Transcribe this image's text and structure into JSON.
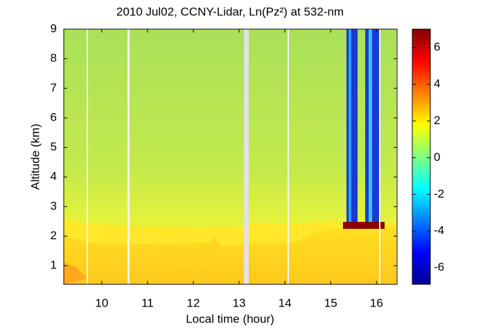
{
  "chart_data": {
    "type": "heatmap",
    "title": "2010 Jul02, CCNY-Lidar, Ln(Pz²) at 532-nm",
    "x_label": "Local time (hour)",
    "y_label": "Altitude (km)",
    "xlim": [
      9.17,
      16.45
    ],
    "xticks": [
      10,
      11,
      12,
      13,
      14,
      15,
      16
    ],
    "ylim": [
      0.37,
      9
    ],
    "yticks": [
      1,
      2,
      3,
      4,
      5,
      6,
      7,
      8,
      9
    ],
    "clim": [
      -6.9,
      7.0
    ],
    "cticks": [
      -6,
      -4,
      -2,
      0,
      2,
      4,
      6
    ]
  }
}
